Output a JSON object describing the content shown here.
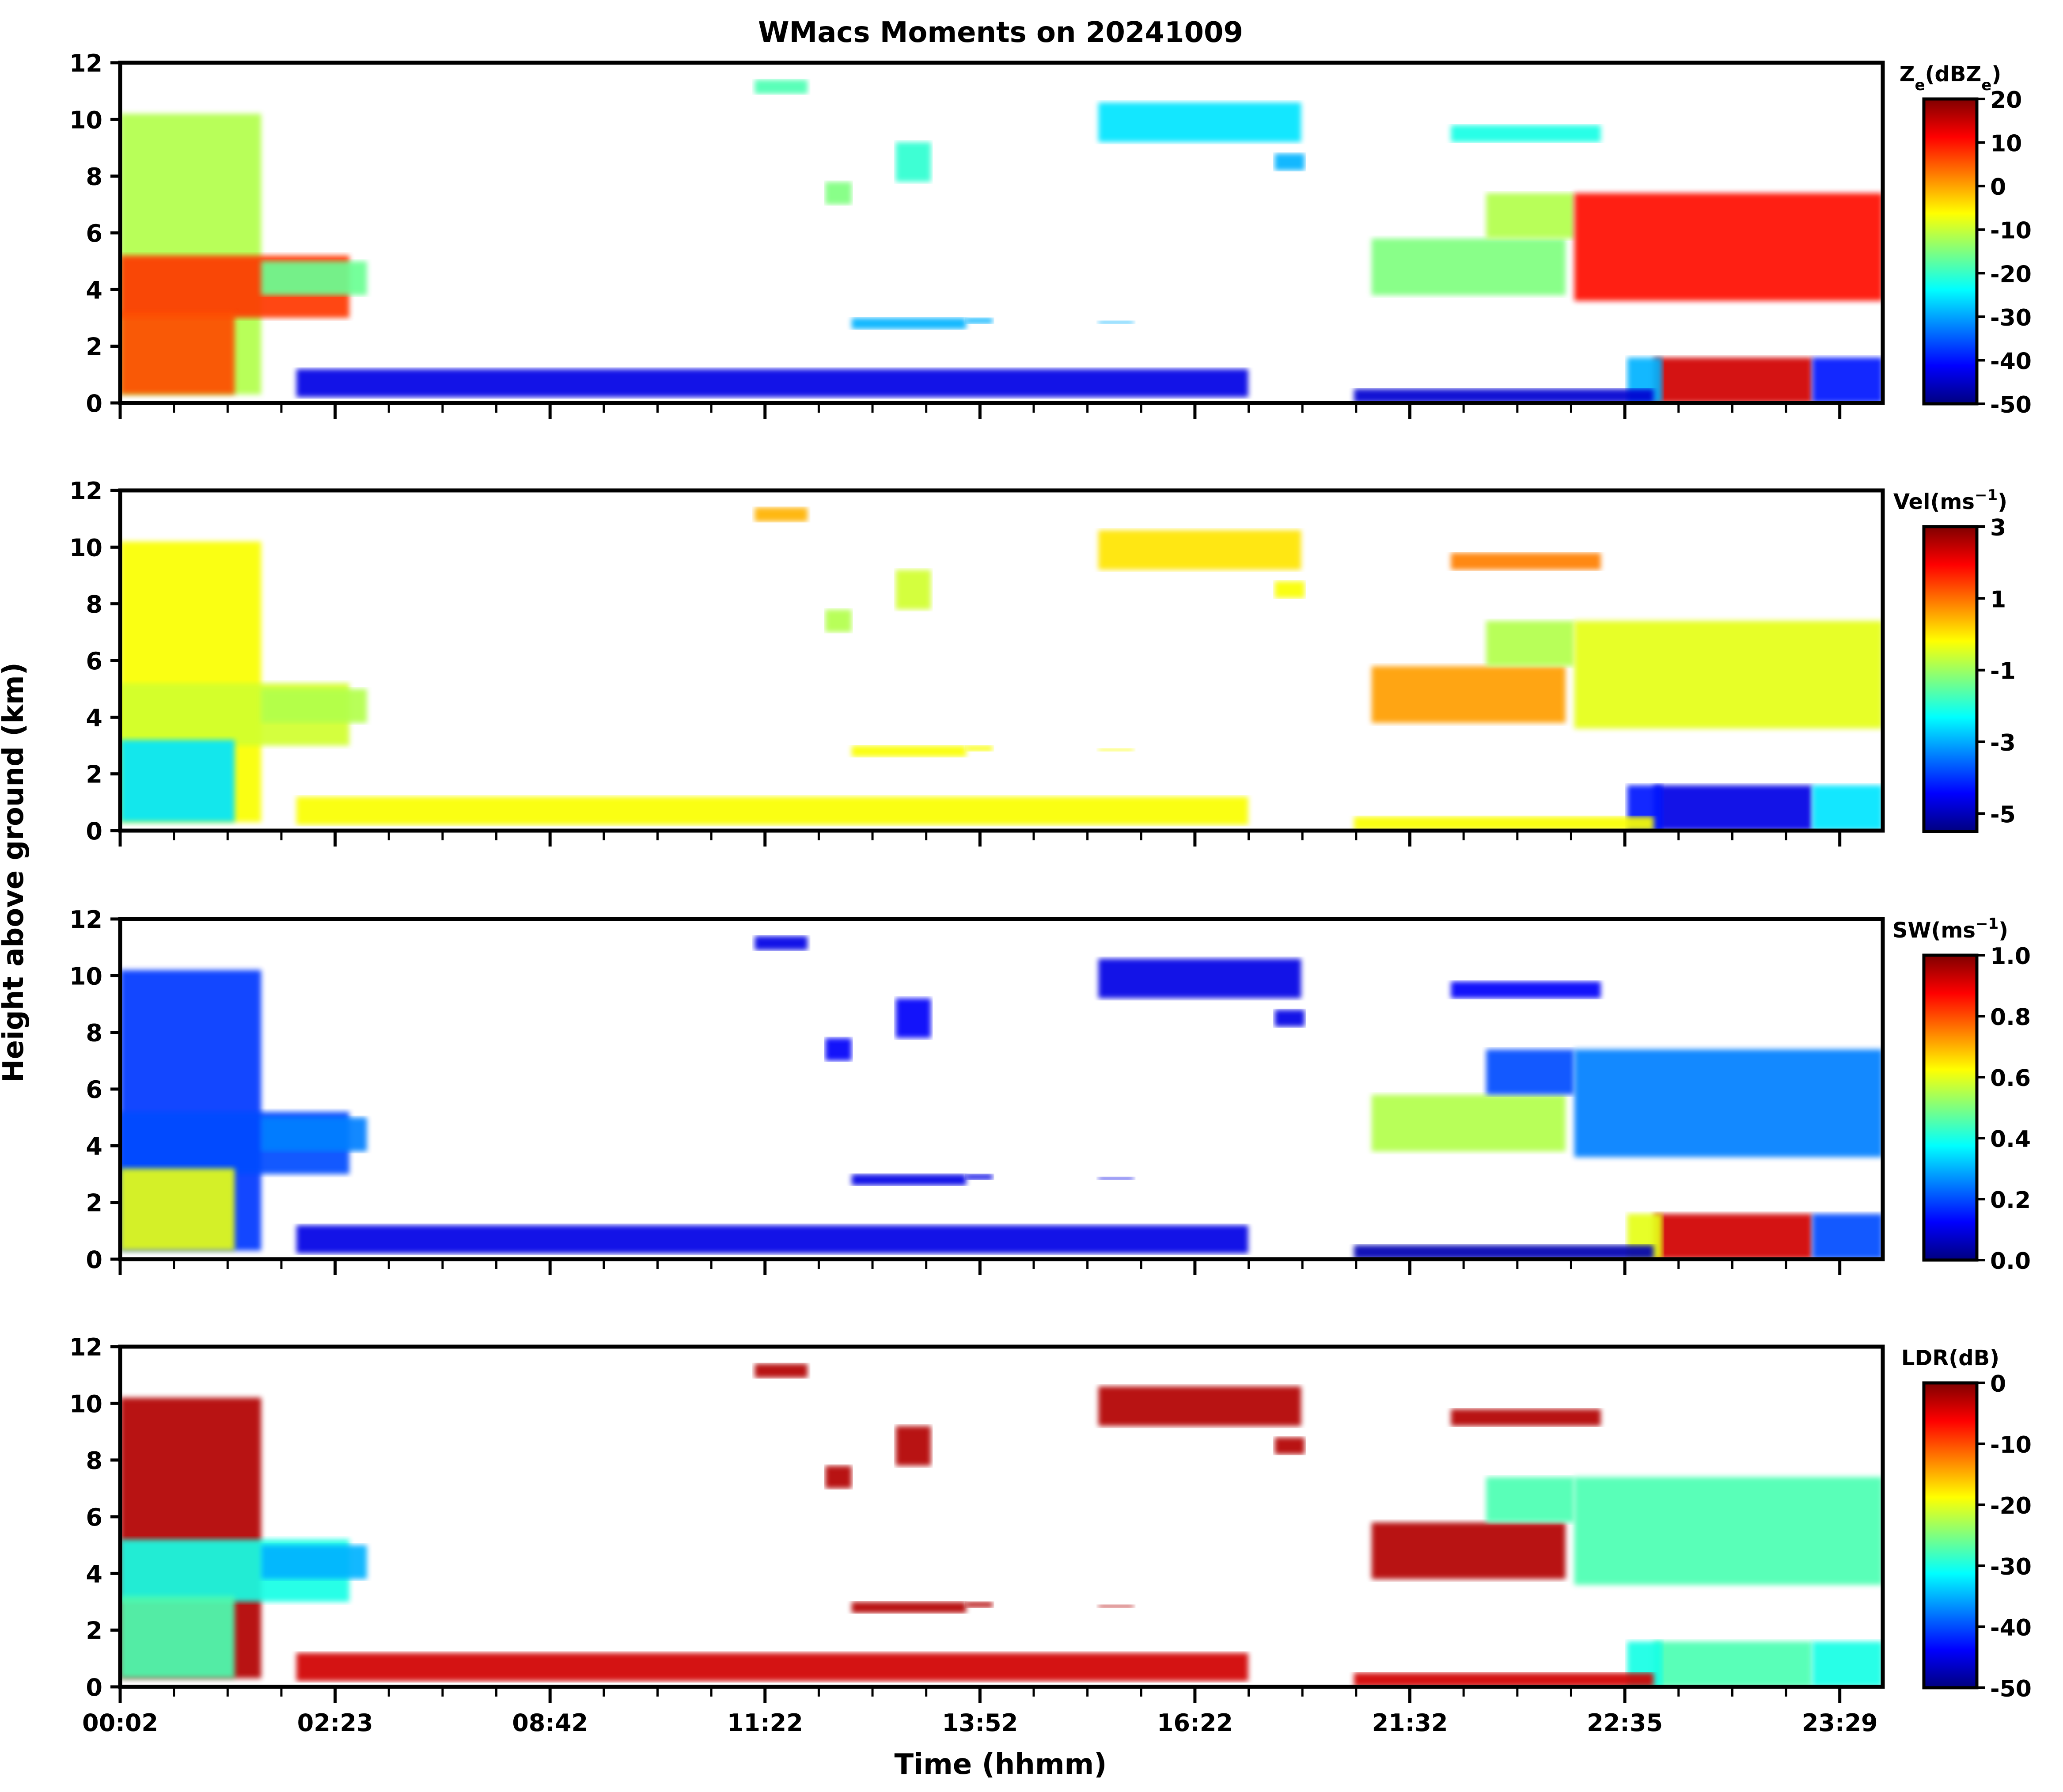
{
  "chart_data": {
    "type": "heatmap",
    "title": "WMacs Moments on 20241009",
    "xlabel": "Time (hhmm)",
    "ylabel": "Height above ground (km)",
    "x_tick_labels": [
      "00:02",
      "02:23",
      "08:42",
      "11:22",
      "13:52",
      "16:22",
      "21:32",
      "22:35",
      "23:29"
    ],
    "ylim": [
      0,
      12
    ],
    "y_ticks": [
      0,
      2,
      4,
      6,
      8,
      10,
      12
    ],
    "panels": [
      {
        "name": "Ze",
        "colorbar_label": "Ze(dBZe)",
        "colorbar_label_main": "Z",
        "colorbar_label_sub": "e",
        "colorbar_label_rest": "(dBZ",
        "colorbar_label_close": ")",
        "clim": [
          -50,
          20
        ],
        "colorbar_ticks": [
          "20",
          "10",
          "0",
          "-10",
          "-20",
          "-30",
          "-40",
          "-50"
        ],
        "colorbar_tick_values": [
          20,
          10,
          0,
          -10,
          -20,
          -30,
          -40,
          -50
        ]
      },
      {
        "name": "Vel",
        "colorbar_label": "Vel(ms-1)",
        "colorbar_label_main": "Vel(ms",
        "colorbar_label_sup": "−1",
        "colorbar_label_close": ")",
        "clim": [
          -5.5,
          3
        ],
        "colorbar_ticks": [
          "3",
          "1",
          "-1",
          "-3",
          "-5"
        ],
        "colorbar_tick_values": [
          3,
          1,
          -1,
          -3,
          -5
        ]
      },
      {
        "name": "SW",
        "colorbar_label": "SW(ms-1)",
        "colorbar_label_main": "SW(ms",
        "colorbar_label_sup": "−1",
        "colorbar_label_close": ")",
        "clim": [
          0,
          1
        ],
        "colorbar_ticks": [
          "1.0",
          "0.8",
          "0.6",
          "0.4",
          "0.2",
          "0.0"
        ],
        "colorbar_tick_values": [
          1.0,
          0.8,
          0.6,
          0.4,
          0.2,
          0.0
        ]
      },
      {
        "name": "LDR",
        "colorbar_label": "LDR(dB)",
        "colorbar_label_main": "LDR(dB)",
        "clim": [
          -50,
          0
        ],
        "colorbar_ticks": [
          "0",
          "-10",
          "-20",
          "-30",
          "-40",
          "-50"
        ],
        "colorbar_tick_values": [
          0,
          -10,
          -20,
          -30,
          -40,
          -50
        ]
      }
    ],
    "colormap": "jet",
    "colormap_stops": [
      "#00007f",
      "#0000ff",
      "#007fff",
      "#00ffff",
      "#7fff7f",
      "#ffff00",
      "#ff7f00",
      "#ff0000",
      "#7f0000"
    ]
  }
}
